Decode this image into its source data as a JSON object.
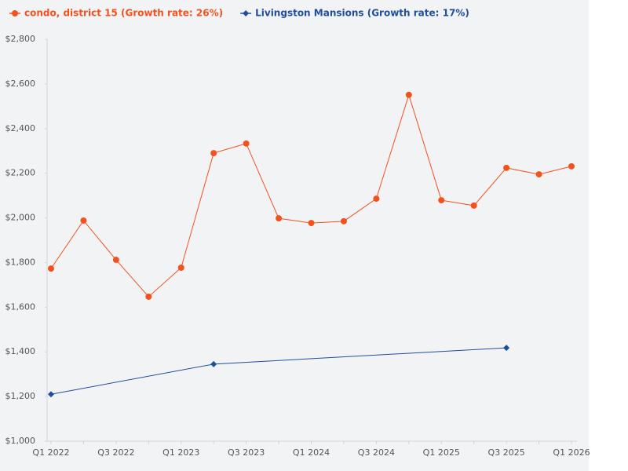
{
  "chart_data": {
    "type": "line",
    "categories": [
      "Q1 2022",
      null,
      "Q3 2022",
      null,
      "Q1 2023",
      null,
      "Q3 2023",
      null,
      "Q1 2024",
      null,
      "Q3 2024",
      null,
      "Q1 2025",
      null,
      "Q3 2025",
      null,
      "Q1 2026"
    ],
    "series": [
      {
        "name": "condo, district 15 (Growth rate: 26%)",
        "color": "#f4511e",
        "marker": "circle",
        "values": [
          1773,
          1988,
          1812,
          1647,
          1777,
          2290,
          2333,
          1998,
          1977,
          1985,
          2086,
          2551,
          2079,
          2055,
          2224,
          2195,
          2231
        ]
      },
      {
        "name": "Livingston Mansions (Growth rate: 17%)",
        "color": "#1f4e9c",
        "marker": "diamond",
        "values": [
          1210,
          null,
          null,
          null,
          null,
          1345,
          null,
          null,
          null,
          null,
          null,
          null,
          null,
          null,
          1418,
          null,
          null
        ]
      }
    ],
    "connect_gaps": true,
    "ylim": [
      1000,
      2800
    ],
    "yticks": [
      {
        "value": 1000,
        "label": "$1,000"
      },
      {
        "value": 1200,
        "label": "$1,200"
      },
      {
        "value": 1400,
        "label": "$1,400"
      },
      {
        "value": 1600,
        "label": "$1,600"
      },
      {
        "value": 1800,
        "label": "$1,800"
      },
      {
        "value": 2000,
        "label": "$2,000"
      },
      {
        "value": 2200,
        "label": "$2,200"
      },
      {
        "value": 2400,
        "label": "$2,400"
      },
      {
        "value": 2600,
        "label": "$2,600"
      },
      {
        "value": 2800,
        "label": "$2,800"
      }
    ],
    "grid": false,
    "legend": "top-left"
  }
}
